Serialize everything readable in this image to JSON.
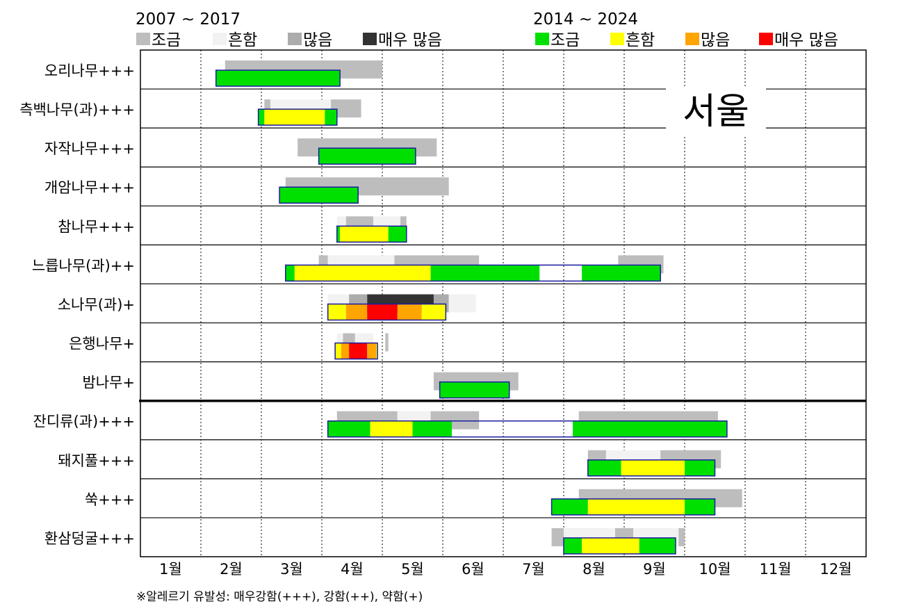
{
  "legend": {
    "left_period": "2007 ~ 2017",
    "right_period": "2014 ~ 2024",
    "left_items": [
      {
        "label": "조금",
        "color": "#bdbdbd"
      },
      {
        "label": "흔함",
        "color": "#f2f2f2"
      },
      {
        "label": "많음",
        "color": "#acacac"
      },
      {
        "label": "매우 많음",
        "color": "#333333"
      }
    ],
    "right_items": [
      {
        "label": "조금",
        "color": "#00e000"
      },
      {
        "label": "흔함",
        "color": "#ffff00"
      },
      {
        "label": "많음",
        "color": "#ffa500"
      },
      {
        "label": "매우 많음",
        "color": "#ff0000"
      }
    ]
  },
  "region_label": "서울",
  "footnote": "※알레르기 유발성: 매우강함(+++), 강함(++), 약함(+)",
  "chart_data": {
    "type": "bar",
    "subtype": "pollen-calendar-gantt",
    "months": [
      "1월",
      "2월",
      "3월",
      "4월",
      "5월",
      "6월",
      "7월",
      "8월",
      "9월",
      "10월",
      "11월",
      "12월"
    ],
    "x_unit": "month (fractional, 1.0 = start of January)",
    "xlim": [
      1,
      13
    ],
    "separator_after_row": 8,
    "rows": [
      {
        "label": "오리나무+++",
        "old": [
          [
            2.4,
            5.0,
            "조금"
          ]
        ],
        "new": [
          [
            2.25,
            4.3,
            "조금"
          ]
        ]
      },
      {
        "label": "측백나무(과)+++",
        "old": [
          [
            3.05,
            3.15,
            "조금"
          ],
          [
            3.15,
            4.15,
            "흔함"
          ],
          [
            4.15,
            4.65,
            "조금"
          ]
        ],
        "new": [
          [
            2.95,
            3.05,
            "조금"
          ],
          [
            3.05,
            4.05,
            "흔함"
          ],
          [
            4.05,
            4.25,
            "조금"
          ]
        ]
      },
      {
        "label": "자작나무+++",
        "old": [
          [
            3.6,
            5.9,
            "조금"
          ]
        ],
        "new": [
          [
            3.95,
            5.55,
            "조금"
          ]
        ]
      },
      {
        "label": "개암나무+++",
        "old": [
          [
            3.4,
            6.1,
            "조금"
          ]
        ],
        "new": [
          [
            3.3,
            4.6,
            "조금"
          ]
        ]
      },
      {
        "label": "참나무+++",
        "old": [
          [
            4.25,
            4.4,
            "흔함"
          ],
          [
            4.4,
            4.85,
            "조금"
          ],
          [
            4.85,
            5.3,
            "흔함"
          ],
          [
            5.3,
            5.4,
            "조금"
          ]
        ],
        "new": [
          [
            4.25,
            4.3,
            "조금"
          ],
          [
            4.3,
            5.1,
            "흔함"
          ],
          [
            5.1,
            5.4,
            "조금"
          ]
        ]
      },
      {
        "label": "느릅나무(과)++",
        "old": [
          [
            3.95,
            4.1,
            "조금"
          ],
          [
            4.1,
            5.2,
            "흔함"
          ],
          [
            5.2,
            6.6,
            "조금"
          ],
          [
            8.9,
            9.65,
            "조금"
          ]
        ],
        "new": [
          [
            3.4,
            3.55,
            "조금"
          ],
          [
            3.55,
            5.8,
            "흔함"
          ],
          [
            5.8,
            7.6,
            "조금"
          ],
          [
            8.3,
            9.6,
            "조금"
          ]
        ]
      },
      {
        "label": "소나무(과)+",
        "old": [
          [
            4.1,
            4.45,
            "흔함"
          ],
          [
            4.45,
            4.75,
            "많음"
          ],
          [
            4.75,
            5.85,
            "매우 많음"
          ],
          [
            5.85,
            6.1,
            "많음"
          ],
          [
            6.1,
            6.55,
            "흔함"
          ]
        ],
        "new": [
          [
            4.1,
            4.4,
            "흔함"
          ],
          [
            4.4,
            4.75,
            "많음"
          ],
          [
            4.75,
            5.25,
            "매우 많음"
          ],
          [
            5.25,
            5.65,
            "많음"
          ],
          [
            5.65,
            6.05,
            "흔함"
          ]
        ]
      },
      {
        "label": "은행나무+",
        "old": [
          [
            4.25,
            4.35,
            "흔함"
          ],
          [
            4.35,
            4.55,
            "조금"
          ],
          [
            4.55,
            4.85,
            "흔함"
          ],
          [
            5.05,
            5.1,
            "조금"
          ]
        ],
        "new": [
          [
            4.22,
            4.32,
            "흔함"
          ],
          [
            4.32,
            4.45,
            "많음"
          ],
          [
            4.45,
            4.75,
            "매우 많음"
          ],
          [
            4.75,
            4.9,
            "많음"
          ],
          [
            4.9,
            4.92,
            "흔함"
          ]
        ]
      },
      {
        "label": "밤나무+",
        "old": [
          [
            5.85,
            7.25,
            "조금"
          ]
        ],
        "new": [
          [
            5.95,
            7.1,
            "조금"
          ]
        ]
      },
      {
        "label": "잔디류(과)+++",
        "old": [
          [
            4.25,
            5.25,
            "조금"
          ],
          [
            5.25,
            5.8,
            "흔함"
          ],
          [
            5.8,
            6.6,
            "조금"
          ],
          [
            8.25,
            10.55,
            "조금"
          ]
        ],
        "new": [
          [
            4.1,
            4.8,
            "조금"
          ],
          [
            4.8,
            5.5,
            "흔함"
          ],
          [
            5.5,
            6.15,
            "조금"
          ],
          [
            8.15,
            10.7,
            "조금"
          ]
        ]
      },
      {
        "label": "돼지풀+++",
        "old": [
          [
            8.4,
            8.7,
            "조금"
          ],
          [
            8.7,
            9.6,
            "흔함"
          ],
          [
            9.6,
            10.6,
            "조금"
          ]
        ],
        "new": [
          [
            8.4,
            8.95,
            "조금"
          ],
          [
            8.95,
            10.0,
            "흔함"
          ],
          [
            10.0,
            10.5,
            "조금"
          ]
        ]
      },
      {
        "label": "쑥+++",
        "old": [
          [
            8.25,
            10.95,
            "조금"
          ]
        ],
        "new": [
          [
            7.8,
            8.4,
            "조금"
          ],
          [
            8.4,
            10.0,
            "흔함"
          ],
          [
            10.0,
            10.5,
            "조금"
          ]
        ]
      },
      {
        "label": "환삼덩굴+++",
        "old": [
          [
            7.8,
            8.0,
            "조금"
          ],
          [
            8.0,
            8.85,
            "흔함"
          ],
          [
            8.85,
            9.15,
            "조금"
          ],
          [
            9.15,
            9.9,
            "흔함"
          ],
          [
            9.9,
            10.0,
            "조금"
          ]
        ],
        "new": [
          [
            8.0,
            8.3,
            "조금"
          ],
          [
            8.3,
            9.25,
            "흔함"
          ],
          [
            9.25,
            9.85,
            "조금"
          ]
        ]
      }
    ]
  }
}
